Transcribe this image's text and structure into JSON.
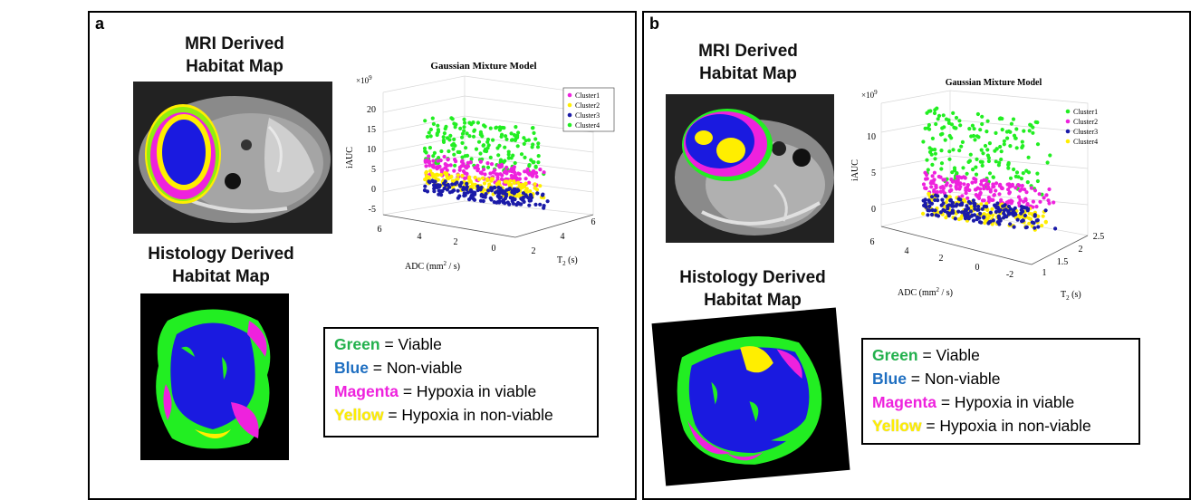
{
  "panels": [
    {
      "label": "a",
      "mri_title_1": "MRI Derived",
      "mri_title_2": "Habitat Map",
      "hist_title_1": "Histology Derived",
      "hist_title_2": "Habitat Map",
      "legend": [
        {
          "color_word": "Green",
          "text": " = Viable",
          "color": "#22b04c"
        },
        {
          "color_word": "Blue",
          "text": " = Non-viable",
          "color": "#1f6fc1"
        },
        {
          "color_word": "Magenta",
          "text": " = Hypoxia in viable",
          "color": "#ee22dd"
        },
        {
          "color_word": "Yellow",
          "text": " = Hypoxia in non-viable",
          "color": "#ffee00"
        }
      ],
      "chart_data": {
        "type": "scatter",
        "title": "Gaussian Mixture Model",
        "exponent_label": "×10",
        "exponent": "9",
        "zlabel": "iAUC",
        "xlabel": "ADC (mm",
        "xlabel_sup": "2",
        "xlabel_end": " / s)",
        "ylabel": "T",
        "ylabel_sub": "2",
        "ylabel_end": " (s)",
        "z_ticks": [
          "20",
          "15",
          "10",
          "5",
          "0",
          "-5"
        ],
        "x_ticks": [
          "6",
          "4",
          "2",
          "0"
        ],
        "y_ticks": [
          "2",
          "4",
          "6"
        ],
        "series": [
          {
            "name": "Cluster1",
            "color": "#ee22dd",
            "iAUC_range": [
              5,
              10
            ]
          },
          {
            "name": "Cluster2",
            "color": "#ffee00",
            "iAUC_range": [
              2,
              6
            ]
          },
          {
            "name": "Cluster3",
            "color": "#1a1aa8",
            "iAUC_range": [
              0,
              4
            ]
          },
          {
            "name": "Cluster4",
            "color": "#22ee22",
            "iAUC_range": [
              8,
              20
            ]
          }
        ]
      }
    },
    {
      "label": "b",
      "mri_title_1": "MRI Derived",
      "mri_title_2": "Habitat Map",
      "hist_title_1": "Histology Derived",
      "hist_title_2": "Habitat Map",
      "legend": [
        {
          "color_word": "Green",
          "text": " = Viable",
          "color": "#22b04c"
        },
        {
          "color_word": "Blue",
          "text": " = Non-viable",
          "color": "#1f6fc1"
        },
        {
          "color_word": "Magenta",
          "text": " = Hypoxia in viable",
          "color": "#ee22dd"
        },
        {
          "color_word": "Yellow",
          "text": " = Hypoxia in non-viable",
          "color": "#ffee00"
        }
      ],
      "chart_data": {
        "type": "scatter",
        "title": "Gaussian Mixture Model",
        "exponent_label": "×10",
        "exponent": "9",
        "zlabel": "iAUC",
        "xlabel": "ADC (mm",
        "xlabel_sup": "2",
        "xlabel_end": " / s)",
        "ylabel": "T",
        "ylabel_sub": "2",
        "ylabel_end": " (s)",
        "z_ticks": [
          "10",
          "5",
          "0"
        ],
        "x_ticks": [
          "6",
          "4",
          "2",
          "0",
          "-2"
        ],
        "y_ticks": [
          "1",
          "1.5",
          "2",
          "2.5"
        ],
        "series": [
          {
            "name": "Cluster1",
            "color": "#22ee22",
            "iAUC_range": [
              5,
              15
            ]
          },
          {
            "name": "Cluster2",
            "color": "#ee22dd",
            "iAUC_range": [
              3,
              6
            ]
          },
          {
            "name": "Cluster3",
            "color": "#1a1aa8",
            "iAUC_range": [
              0,
              3
            ]
          },
          {
            "name": "Cluster4",
            "color": "#ffee00",
            "iAUC_range": [
              0,
              3
            ]
          }
        ]
      }
    }
  ]
}
